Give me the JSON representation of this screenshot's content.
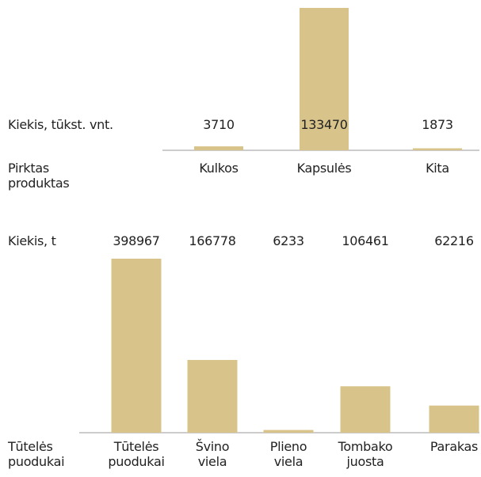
{
  "chart_data": [
    {
      "type": "bar",
      "y_label": "Kiekis, tūkst. vnt.",
      "x_label": "Pirktas produktas",
      "categories": [
        "Kulkos",
        "Kapsulės",
        "Kita"
      ],
      "values": [
        3710,
        133470,
        1873
      ],
      "color": "#d8c48a"
    },
    {
      "type": "bar",
      "y_label": "Kiekis, t",
      "x_label": "Tūtelės puodukai",
      "categories": [
        "Tūtelės puodukai",
        "Švino viela",
        "Plieno viela",
        "Tombako juosta",
        "Parakas"
      ],
      "values": [
        398967,
        166778,
        6233,
        106461,
        62216
      ],
      "color": "#d8c48a"
    }
  ]
}
